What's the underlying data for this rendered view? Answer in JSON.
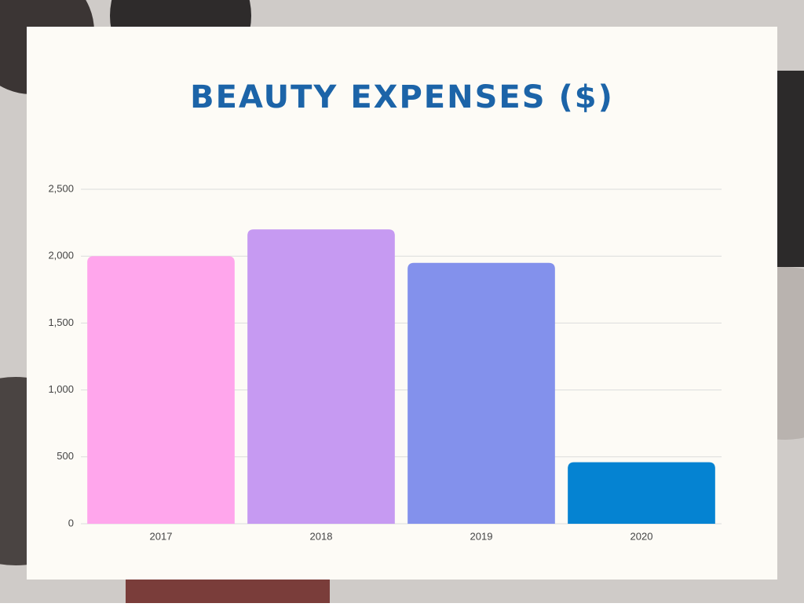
{
  "chart_data": {
    "type": "bar",
    "title": "BEAUTY EXPENSES ($)",
    "categories": [
      "2017",
      "2018",
      "2019",
      "2020"
    ],
    "values": [
      2000,
      2200,
      1950,
      460
    ],
    "colors": [
      "#ffa6ec",
      "#c69af2",
      "#8391ec",
      "#0583d2"
    ],
    "ylim": [
      0,
      2500
    ],
    "yticks": [
      0,
      500,
      {
        "value": 1000,
        "label": "1,000"
      },
      {
        "value": 1500,
        "label": "1,500"
      },
      {
        "value": 2000,
        "label": "2,000"
      },
      {
        "value": 2500,
        "label": "2,500"
      }
    ],
    "grid": true
  }
}
